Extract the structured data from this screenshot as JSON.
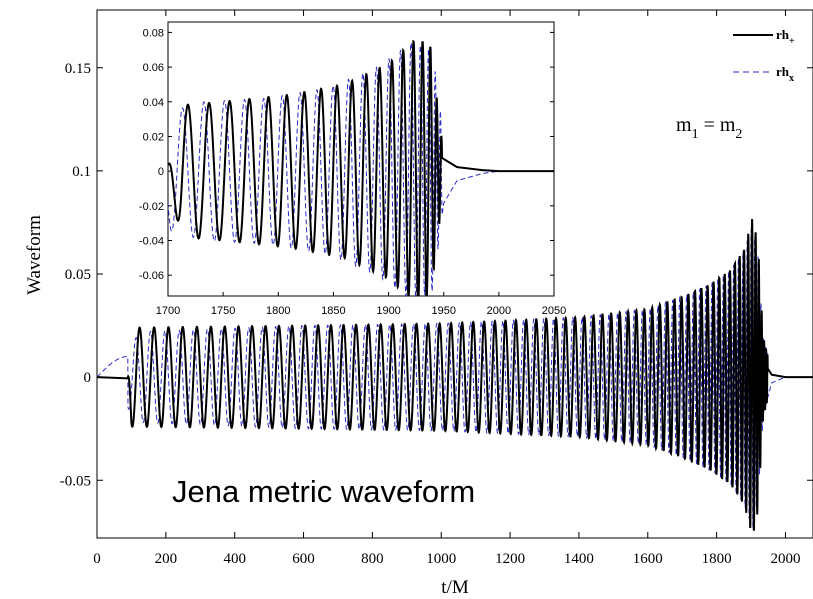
{
  "chart_data": [
    {
      "type": "line",
      "title": "",
      "xlabel": "t/M",
      "ylabel": "Waveform",
      "xlim": [
        0,
        2080
      ],
      "ylim": [
        -0.078,
        0.178
      ],
      "xticks": [
        "0",
        "200",
        "400",
        "600",
        "800",
        "1000",
        "1200",
        "1400",
        "1600",
        "1800",
        "2000"
      ],
      "yticks": [
        "-0.05",
        "0",
        "0.05",
        "0.1",
        "0.15"
      ],
      "grid": false,
      "legend_placement": "top-right",
      "legend": [
        {
          "base": "rh",
          "sub": "+",
          "color": "#000000",
          "style": "solid"
        },
        {
          "base": "rh",
          "sub": "x",
          "color": "#2828c8",
          "style": "dashed"
        }
      ],
      "annotations": {
        "mass_label": {
          "base": "m",
          "sub1": "1",
          "eq": " = ",
          "sub2": "2"
        },
        "caption": "Jena metric waveform"
      },
      "series": [
        {
          "name": "rh_+",
          "color": "#000000",
          "style": "solid",
          "envelope": [
            [
              0,
              0.0
            ],
            [
              90,
              0.0
            ],
            [
              100,
              0.024
            ],
            [
              600,
              0.025
            ],
            [
              1000,
              0.026
            ],
            [
              1400,
              0.029
            ],
            [
              1600,
              0.033
            ],
            [
              1700,
              0.039
            ],
            [
              1780,
              0.045
            ],
            [
              1840,
              0.052
            ],
            [
              1880,
              0.062
            ],
            [
              1905,
              0.078
            ],
            [
              1920,
              0.065
            ],
            [
              1935,
              0.02
            ],
            [
              1960,
              0.003
            ],
            [
              2000,
              0.0
            ]
          ],
          "crest_times": [
            100,
            0.0,
            1926
          ],
          "phase_at_1700": 0.5
        },
        {
          "name": "rh_x",
          "color": "#2828c8",
          "style": "dashed",
          "envelope": [
            [
              0,
              0.0
            ],
            [
              60,
              0.01
            ],
            [
              130,
              0.022
            ],
            [
              600,
              0.025
            ],
            [
              1000,
              0.026
            ],
            [
              1400,
              0.029
            ],
            [
              1600,
              0.033
            ],
            [
              1700,
              0.039
            ],
            [
              1780,
              0.045
            ],
            [
              1840,
              0.052
            ],
            [
              1880,
              0.062
            ],
            [
              1905,
              0.074
            ],
            [
              1920,
              0.06
            ],
            [
              1935,
              0.02
            ],
            [
              1960,
              0.003
            ],
            [
              2000,
              0.0
            ]
          ],
          "phase_offset": "quarter-cycle lead"
        }
      ]
    },
    {
      "type": "line",
      "title": "",
      "placement": "inset-top-left",
      "xlim": [
        1700,
        2050
      ],
      "ylim": [
        -0.072,
        0.086
      ],
      "xticks": [
        "1700",
        "1750",
        "1800",
        "1850",
        "1900",
        "1950",
        "2000",
        "2050"
      ],
      "yticks": [
        "-0.06",
        "-0.04",
        "-0.02",
        "0",
        "0.02",
        "0.04",
        "0.06",
        "0.08"
      ],
      "grid": false,
      "series": [
        {
          "name": "rh_+",
          "color": "#000000",
          "style": "solid",
          "crests": [
            [
              1751,
              0.04
            ],
            [
              1810,
              0.044
            ],
            [
              1862,
              0.05
            ],
            [
              1902,
              0.062
            ],
            [
              1928,
              0.077
            ]
          ],
          "troughs": [
            [
              1712,
              -0.038
            ],
            [
              1782,
              -0.04
            ],
            [
              1838,
              -0.046
            ],
            [
              1885,
              -0.057
            ],
            [
              1917,
              -0.068
            ],
            [
              1938,
              -0.072
            ]
          ],
          "envelope": [
            [
              1700,
              0.004
            ],
            [
              1712,
              0.038
            ],
            [
              1750,
              0.04
            ],
            [
              1810,
              0.044
            ],
            [
              1860,
              0.05
            ],
            [
              1900,
              0.062
            ],
            [
              1926,
              0.077
            ],
            [
              1938,
              0.072
            ],
            [
              1948,
              0.02
            ],
            [
              1962,
              0.006
            ],
            [
              1985,
              0.0015
            ],
            [
              2000,
              0.0
            ],
            [
              2050,
              0.0
            ]
          ]
        },
        {
          "name": "rh_x",
          "color": "#2828c8",
          "style": "dashed",
          "crests": [
            [
              1733,
              0.04
            ],
            [
              1792,
              0.042
            ],
            [
              1845,
              0.048
            ],
            [
              1891,
              0.06
            ],
            [
              1922,
              0.075
            ],
            [
              1941,
              0.069
            ]
          ],
          "troughs": [
            [
              1710,
              -0.035
            ],
            [
              1765,
              -0.038
            ],
            [
              1820,
              -0.043
            ],
            [
              1870,
              -0.052
            ],
            [
              1908,
              -0.063
            ],
            [
              1933,
              -0.07
            ]
          ],
          "envelope": [
            [
              1700,
              0.034
            ],
            [
              1733,
              0.04
            ],
            [
              1790,
              0.042
            ],
            [
              1845,
              0.048
            ],
            [
              1890,
              0.06
            ],
            [
              1922,
              0.075
            ],
            [
              1940,
              0.069
            ],
            [
              1950,
              0.02
            ],
            [
              1962,
              0.006
            ],
            [
              1985,
              0.0015
            ],
            [
              2000,
              0.0
            ],
            [
              2050,
              0.0
            ]
          ]
        }
      ]
    }
  ]
}
